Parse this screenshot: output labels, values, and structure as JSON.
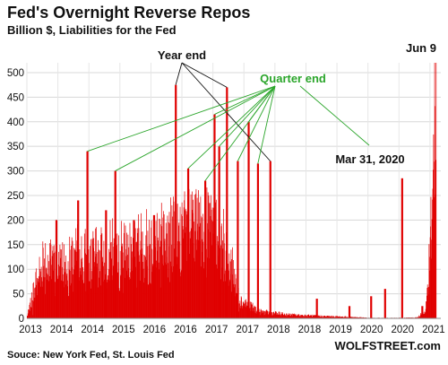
{
  "chart_data": {
    "type": "bar",
    "title": "Fed's Overnight Reverse Repos",
    "subtitle": "Billion $, Liabilities for the Fed",
    "ylim": [
      0,
      520
    ],
    "yticks": [
      0,
      50,
      100,
      150,
      200,
      250,
      300,
      350,
      400,
      450,
      500
    ],
    "xtick_labels": [
      "2013",
      "2014",
      "2014",
      "2015",
      "2016",
      "2016",
      "2017",
      "2017",
      "2018",
      "2018",
      "2019",
      "2020",
      "2020",
      "2021"
    ],
    "grid": true,
    "bar_color": "#e00000",
    "annotation_color_black": "#111111",
    "annotation_color_green": "#2aa52a",
    "series_profile": [
      [
        0,
        5
      ],
      [
        0.5,
        130
      ],
      [
        1.0,
        120
      ],
      [
        1.5,
        140
      ],
      [
        2.0,
        130
      ],
      [
        2.5,
        150
      ],
      [
        3.0,
        140
      ],
      [
        3.5,
        160
      ],
      [
        4.0,
        170
      ],
      [
        4.5,
        180
      ],
      [
        5.0,
        200
      ],
      [
        5.5,
        210
      ],
      [
        6.0,
        200
      ],
      [
        6.5,
        140
      ],
      [
        6.9,
        40
      ],
      [
        7.5,
        15
      ],
      [
        8.5,
        8
      ],
      [
        9.5,
        5
      ],
      [
        10.5,
        3
      ],
      [
        11.0,
        1
      ],
      [
        12.0,
        1
      ],
      [
        12.6,
        2
      ],
      [
        12.85,
        20
      ],
      [
        13.0,
        150
      ],
      [
        13.15,
        500
      ]
    ],
    "spikes": [
      {
        "x": 0.95,
        "y": 200
      },
      {
        "x": 1.65,
        "y": 240
      },
      {
        "x": 1.95,
        "y": 340
      },
      {
        "x": 2.55,
        "y": 220
      },
      {
        "x": 2.85,
        "y": 300
      },
      {
        "x": 3.45,
        "y": 200
      },
      {
        "x": 4.1,
        "y": 210
      },
      {
        "x": 4.8,
        "y": 475
      },
      {
        "x": 5.2,
        "y": 305
      },
      {
        "x": 5.75,
        "y": 280
      },
      {
        "x": 6.05,
        "y": 415
      },
      {
        "x": 6.45,
        "y": 470
      },
      {
        "x": 6.2,
        "y": 350
      },
      {
        "x": 6.8,
        "y": 320
      },
      {
        "x": 7.15,
        "y": 400
      },
      {
        "x": 7.45,
        "y": 315
      },
      {
        "x": 7.85,
        "y": 320
      },
      {
        "x": 9.35,
        "y": 40
      },
      {
        "x": 10.4,
        "y": 25
      },
      {
        "x": 11.1,
        "y": 45
      },
      {
        "x": 11.55,
        "y": 60
      },
      {
        "x": 12.1,
        "y": 285
      },
      {
        "x": 12.75,
        "y": 25
      }
    ],
    "annotations": [
      {
        "text": "Year end",
        "color": "black",
        "targets_x": [
          4.8,
          6.45,
          7.85
        ]
      },
      {
        "text": "Quarter end",
        "color": "green",
        "targets_x": [
          1.95,
          2.85,
          5.2,
          5.75,
          6.05,
          6.2,
          6.8,
          7.15,
          7.45
        ]
      },
      {
        "text": "Mar 31, 2020",
        "color": "black",
        "target_x": 12.1
      },
      {
        "text": "Jun 9",
        "color": "black",
        "target_x": 13.15
      }
    ]
  },
  "footer": {
    "source": "Souce: New York Fed, St. Louis Fed",
    "brand": "WOLFSTREET.com"
  }
}
